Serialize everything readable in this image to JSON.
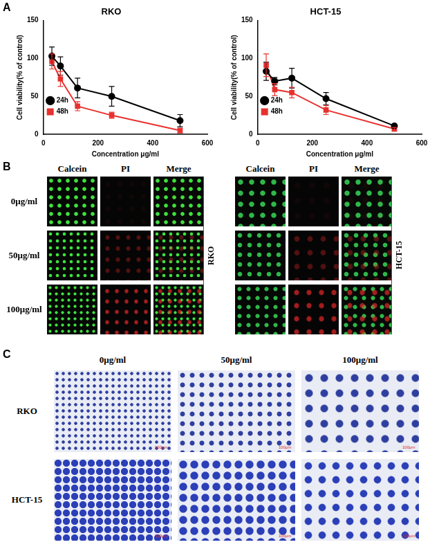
{
  "chart_data": [
    {
      "type": "line",
      "title": "RKO",
      "x_label": "Concentration μg/ml",
      "y_label": "Cell viability(% of control)",
      "x": [
        31.25,
        62.5,
        125,
        250,
        500
      ],
      "series": [
        {
          "name": "24h",
          "color": "#000000",
          "marker": "circle",
          "values": [
            103,
            90,
            61,
            50,
            18
          ],
          "errors": [
            12,
            12,
            13,
            13,
            8
          ]
        },
        {
          "name": "48h",
          "color": "#e8312f",
          "marker": "square",
          "values": [
            96,
            73,
            37,
            25,
            5
          ],
          "errors": [
            10,
            10,
            6,
            4,
            3
          ]
        }
      ],
      "xlim": [
        0,
        600
      ],
      "xticks": [
        0,
        200,
        400,
        600
      ],
      "ylim": [
        0,
        150
      ],
      "yticks": [
        0,
        50,
        100,
        150
      ],
      "grid": false,
      "legend": "upper right"
    },
    {
      "type": "line",
      "title": "HCT-15",
      "x_label": "Concentration μg/ml",
      "y_label": "Cell viability(% of control)",
      "x": [
        31.25,
        62.5,
        125,
        250,
        500
      ],
      "series": [
        {
          "name": "24h",
          "color": "#000000",
          "marker": "circle",
          "values": [
            83,
            70,
            74,
            47,
            11
          ],
          "errors": [
            12,
            5,
            13,
            8,
            2
          ]
        },
        {
          "name": "48h",
          "color": "#e8312f",
          "marker": "square",
          "values": [
            91,
            59,
            55,
            32,
            7
          ],
          "errors": [
            15,
            8,
            7,
            6,
            2
          ]
        }
      ],
      "xlim": [
        0,
        600
      ],
      "xticks": [
        0,
        200,
        400,
        600
      ],
      "ylim": [
        0,
        150
      ],
      "yticks": [
        0,
        50,
        100,
        150
      ],
      "grid": false,
      "legend": "upper right"
    }
  ],
  "figure": {
    "panel_labels": [
      "A",
      "B",
      "C"
    ],
    "panel_b": {
      "columns": [
        "Calcein",
        "PI",
        "Merge"
      ],
      "rows": [
        "0μg/ml",
        "50μg/ml",
        "100μg/ml"
      ],
      "cell_lines": [
        "RKO",
        "HCT-15"
      ]
    },
    "panel_c": {
      "columns": [
        "0μg/ml",
        "50μg/ml",
        "100μg/ml"
      ],
      "rows": [
        "RKO",
        "HCT-15"
      ],
      "scale_bar": "100μm"
    }
  }
}
